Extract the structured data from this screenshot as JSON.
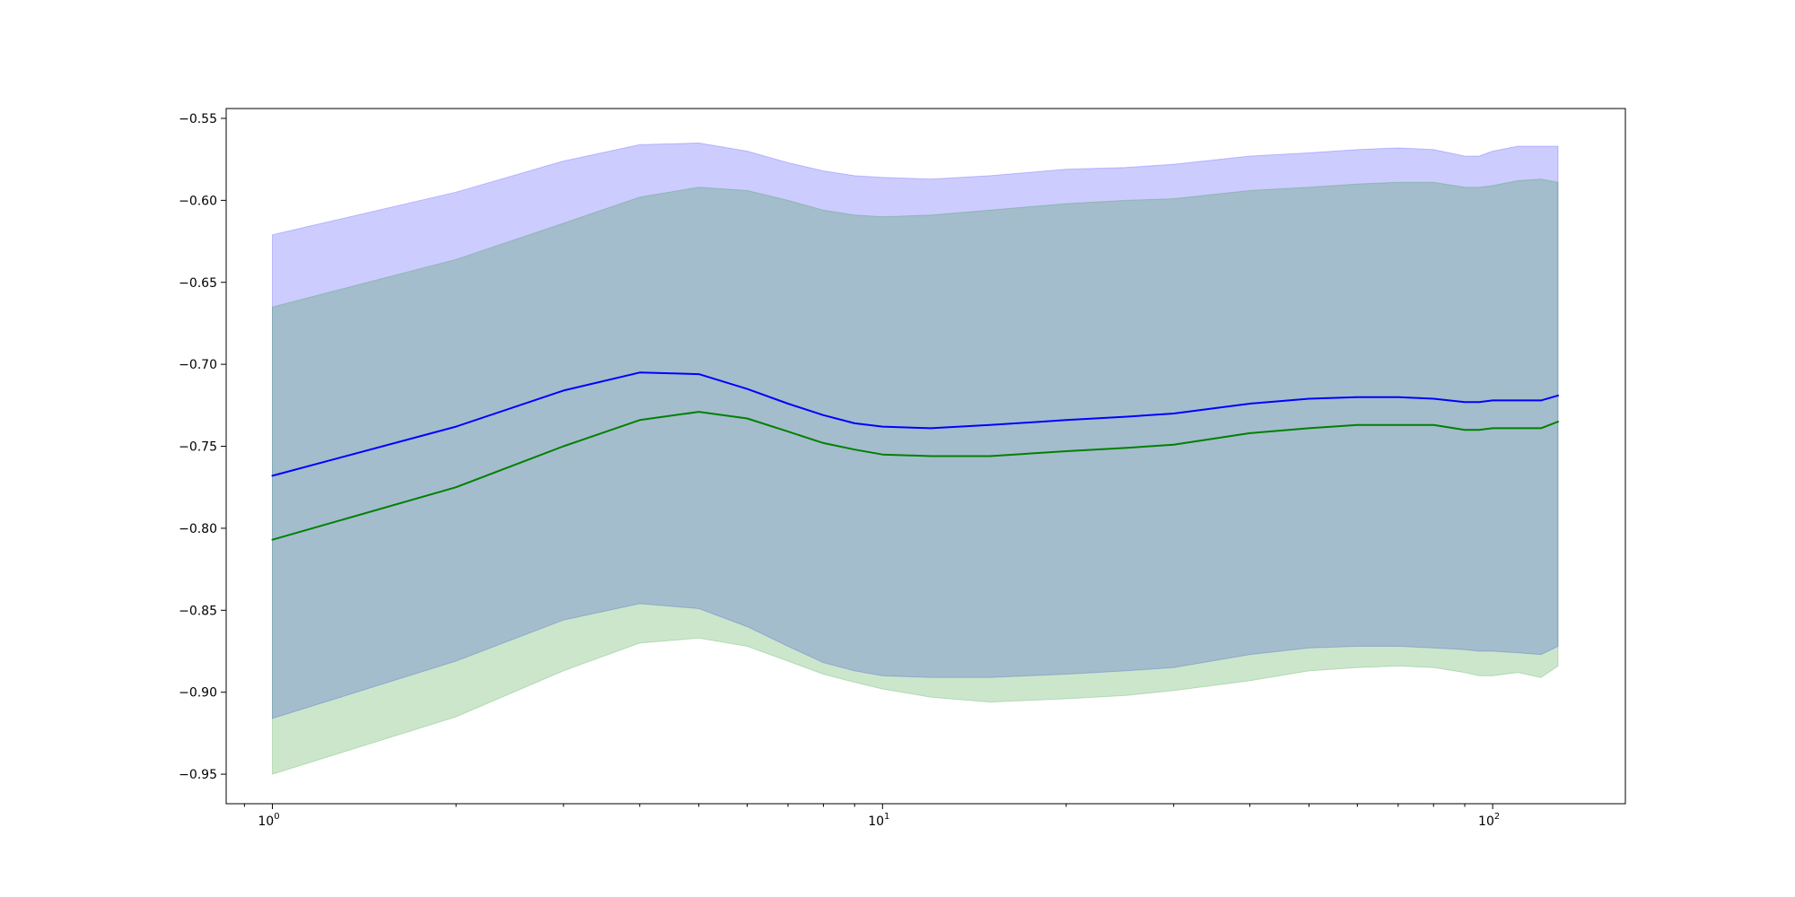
{
  "chart_data": {
    "type": "line",
    "title": "",
    "xlabel": "",
    "ylabel": "",
    "xscale": "log",
    "xlim": [
      0.84,
      165
    ],
    "ylim": [
      -0.968,
      -0.544
    ],
    "grid": false,
    "legend": null,
    "x_ticks": [
      {
        "value": 1,
        "base": "10",
        "exp": "0"
      },
      {
        "value": 10,
        "base": "10",
        "exp": "1"
      },
      {
        "value": 100,
        "base": "10",
        "exp": "2"
      }
    ],
    "y_ticks": [
      "-0.55",
      "-0.60",
      "-0.65",
      "-0.70",
      "-0.75",
      "-0.80",
      "-0.85",
      "-0.90",
      "-0.95"
    ],
    "x": [
      1,
      2,
      3,
      4,
      5,
      6,
      7,
      8,
      9,
      10,
      12,
      15,
      20,
      25,
      30,
      40,
      50,
      60,
      70,
      80,
      90,
      95,
      100,
      110,
      120,
      128
    ],
    "series": [
      {
        "color": "#0000ff",
        "band_color": "#0000ff",
        "band_opacity": 0.2,
        "values": [
          -0.768,
          -0.738,
          -0.716,
          -0.705,
          -0.706,
          -0.715,
          -0.724,
          -0.731,
          -0.736,
          -0.738,
          -0.739,
          -0.737,
          -0.734,
          -0.732,
          -0.73,
          -0.724,
          -0.721,
          -0.72,
          -0.72,
          -0.721,
          -0.723,
          -0.723,
          -0.722,
          -0.722,
          -0.722,
          -0.719
        ],
        "upper": [
          -0.621,
          -0.595,
          -0.576,
          -0.566,
          -0.565,
          -0.57,
          -0.577,
          -0.582,
          -0.585,
          -0.586,
          -0.587,
          -0.585,
          -0.581,
          -0.58,
          -0.578,
          -0.573,
          -0.571,
          -0.569,
          -0.568,
          -0.569,
          -0.573,
          -0.573,
          -0.57,
          -0.567,
          -0.567,
          -0.567
        ],
        "lower": [
          -0.916,
          -0.881,
          -0.856,
          -0.846,
          -0.849,
          -0.86,
          -0.872,
          -0.882,
          -0.887,
          -0.89,
          -0.891,
          -0.891,
          -0.889,
          -0.887,
          -0.885,
          -0.877,
          -0.873,
          -0.872,
          -0.872,
          -0.873,
          -0.874,
          -0.875,
          -0.875,
          -0.876,
          -0.877,
          -0.872
        ]
      },
      {
        "color": "#008000",
        "band_color": "#008000",
        "band_opacity": 0.2,
        "values": [
          -0.807,
          -0.775,
          -0.75,
          -0.734,
          -0.729,
          -0.733,
          -0.741,
          -0.748,
          -0.752,
          -0.755,
          -0.756,
          -0.756,
          -0.753,
          -0.751,
          -0.749,
          -0.742,
          -0.739,
          -0.737,
          -0.737,
          -0.737,
          -0.74,
          -0.74,
          -0.739,
          -0.739,
          -0.739,
          -0.735
        ],
        "upper": [
          -0.665,
          -0.636,
          -0.614,
          -0.598,
          -0.592,
          -0.594,
          -0.6,
          -0.606,
          -0.609,
          -0.61,
          -0.609,
          -0.606,
          -0.602,
          -0.6,
          -0.599,
          -0.594,
          -0.592,
          -0.59,
          -0.589,
          -0.589,
          -0.592,
          -0.592,
          -0.591,
          -0.588,
          -0.587,
          -0.589
        ],
        "lower": [
          -0.95,
          -0.915,
          -0.887,
          -0.87,
          -0.867,
          -0.872,
          -0.881,
          -0.889,
          -0.894,
          -0.898,
          -0.903,
          -0.906,
          -0.904,
          -0.902,
          -0.899,
          -0.893,
          -0.887,
          -0.885,
          -0.884,
          -0.885,
          -0.888,
          -0.89,
          -0.89,
          -0.888,
          -0.891,
          -0.884
        ]
      }
    ]
  }
}
